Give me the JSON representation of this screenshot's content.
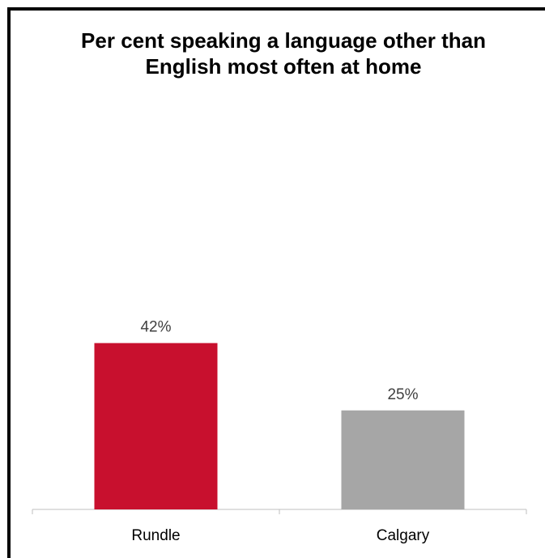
{
  "chart_data": {
    "type": "bar",
    "title": "Per cent speaking a language other than English most often at home",
    "categories": [
      "Rundle",
      "Calgary"
    ],
    "values": [
      42,
      25
    ],
    "data_labels": [
      "42%",
      "25%"
    ],
    "colors": [
      "#c8102e",
      "#a6a6a6"
    ],
    "ylim": [
      0,
      100
    ],
    "grid": false,
    "legend": "none"
  }
}
